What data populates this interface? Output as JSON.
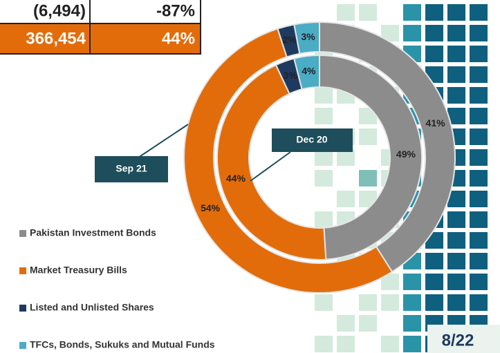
{
  "table": {
    "rows": [
      [
        "(6,494)",
        "-87%"
      ],
      [
        "366,454",
        "44%"
      ]
    ]
  },
  "page_number": "8/22",
  "chart_data": {
    "type": "donut",
    "categories": [
      "Pakistan Investment Bonds",
      "Market Treasury Bills",
      "Listed and Unlisted Shares",
      "TFCs, Bonds, Sukuks and Mutual Funds"
    ],
    "colors": [
      "#8c8c8c",
      "#e36c0a",
      "#1f3a5f",
      "#4bacc6"
    ],
    "series": [
      {
        "name": "Sep 21",
        "values": [
          41,
          54,
          2,
          3
        ],
        "value_labels": [
          "41%",
          "54%",
          "2%",
          "3%"
        ]
      },
      {
        "name": "Dec 20",
        "values": [
          49,
          44,
          3,
          4
        ],
        "value_labels": [
          "49%",
          "44%",
          "3%",
          "4%"
        ]
      }
    ]
  }
}
